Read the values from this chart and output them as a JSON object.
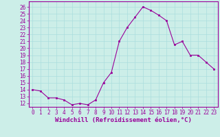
{
  "x": [
    0,
    1,
    2,
    3,
    4,
    5,
    6,
    7,
    8,
    9,
    10,
    11,
    12,
    13,
    14,
    15,
    16,
    17,
    18,
    19,
    20,
    21,
    22,
    23
  ],
  "y": [
    14.0,
    13.8,
    12.8,
    12.8,
    12.5,
    11.8,
    12.0,
    11.8,
    12.5,
    15.0,
    16.5,
    21.0,
    23.0,
    24.5,
    26.0,
    25.5,
    24.8,
    24.0,
    20.5,
    21.0,
    19.0,
    19.0,
    18.0,
    17.0
  ],
  "line_color": "#990099",
  "marker": "s",
  "marker_size": 2.0,
  "bg_color": "#cceee8",
  "grid_color": "#aadddd",
  "xlabel": "Windchill (Refroidissement éolien,°C)",
  "ylabel_ticks": [
    12,
    13,
    14,
    15,
    16,
    17,
    18,
    19,
    20,
    21,
    22,
    23,
    24,
    25,
    26
  ],
  "ylim": [
    11.5,
    26.8
  ],
  "xlim": [
    -0.5,
    23.5
  ],
  "axis_color": "#990099",
  "tick_color": "#990099",
  "font_color": "#990099",
  "tick_fontsize": 5.5,
  "xlabel_fontsize": 6.5
}
